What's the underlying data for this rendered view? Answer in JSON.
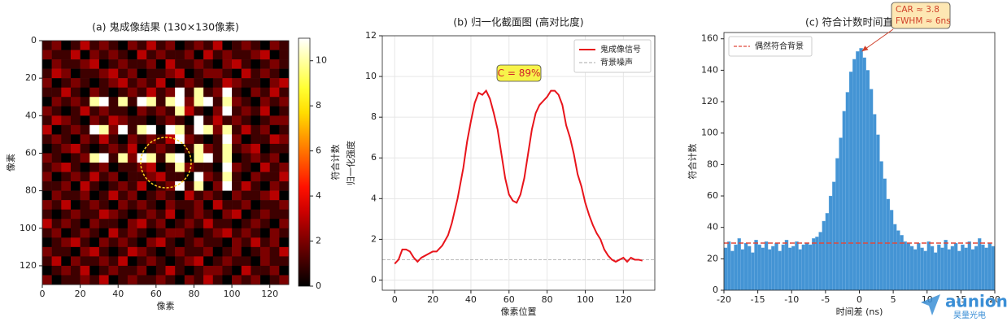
{
  "chart_data": [
    {
      "type": "heatmap",
      "title": "(a) 鬼成像结果 (130×130像素)",
      "xlabel": "像素",
      "ylabel": "像素",
      "colormap": "hot",
      "colorbar_label": "符合计数",
      "zlim": [
        0,
        11
      ],
      "zticks": [
        0,
        2,
        4,
        6,
        8,
        10
      ],
      "xlim": [
        0,
        130
      ],
      "ylim": [
        130,
        0
      ],
      "xticks": [
        0,
        20,
        40,
        60,
        80,
        100,
        120
      ],
      "yticks": [
        0,
        20,
        40,
        60,
        80,
        100,
        120
      ],
      "xbins": [
        0,
        5,
        10,
        15,
        20,
        25,
        30,
        35,
        40,
        45,
        50,
        55,
        60,
        65,
        70,
        75,
        80,
        85,
        90,
        95,
        100,
        105,
        110,
        115,
        120,
        125,
        130
      ],
      "ybins": [
        0,
        5,
        10,
        15,
        20,
        25,
        30,
        35,
        40,
        45,
        50,
        55,
        60,
        65,
        70,
        75,
        80,
        85,
        90,
        95,
        100,
        105,
        110,
        115,
        120,
        125,
        130
      ],
      "z": [
        [
          1,
          2,
          0,
          1,
          3,
          1,
          2,
          1,
          0,
          2,
          1,
          3,
          1,
          2,
          0,
          1,
          2,
          1,
          3,
          0,
          1,
          2,
          1,
          0,
          2,
          1
        ],
        [
          2,
          1,
          1,
          3,
          0,
          2,
          1,
          2,
          1,
          0,
          3,
          1,
          2,
          1,
          1,
          2,
          0,
          3,
          1,
          2,
          1,
          1,
          2,
          3,
          0,
          1
        ],
        [
          0,
          2,
          1,
          1,
          2,
          3,
          0,
          1,
          2,
          1,
          1,
          2,
          0,
          3,
          1,
          1,
          2,
          1,
          0,
          2,
          3,
          1,
          0,
          1,
          2,
          1
        ],
        [
          1,
          3,
          2,
          0,
          1,
          1,
          2,
          3,
          1,
          2,
          0,
          1,
          1,
          2,
          3,
          0,
          1,
          2,
          2,
          1,
          0,
          3,
          1,
          2,
          1,
          0
        ],
        [
          2,
          0,
          1,
          2,
          1,
          0,
          1,
          2,
          3,
          1,
          2,
          1,
          3,
          0,
          1,
          2,
          1,
          0,
          1,
          3,
          2,
          1,
          1,
          0,
          2,
          3
        ],
        [
          1,
          1,
          3,
          1,
          0,
          2,
          1,
          0,
          1,
          2,
          1,
          3,
          1,
          2,
          11,
          1,
          10,
          1,
          2,
          11,
          1,
          0,
          2,
          1,
          3,
          1
        ],
        [
          0,
          2,
          1,
          2,
          1,
          10,
          11,
          1,
          10,
          1,
          11,
          10,
          1,
          10,
          11,
          2,
          10,
          11,
          1,
          10,
          2,
          1,
          0,
          2,
          1,
          2
        ],
        [
          2,
          1,
          0,
          1,
          3,
          1,
          2,
          1,
          1,
          0,
          2,
          1,
          2,
          1,
          10,
          3,
          1,
          0,
          2,
          11,
          1,
          2,
          1,
          3,
          0,
          1
        ],
        [
          1,
          3,
          2,
          1,
          0,
          2,
          1,
          3,
          2,
          1,
          1,
          0,
          1,
          2,
          1,
          0,
          11,
          1,
          3,
          1,
          2,
          1,
          0,
          1,
          2,
          2
        ],
        [
          3,
          0,
          1,
          2,
          1,
          11,
          10,
          2,
          11,
          1,
          10,
          11,
          0,
          11,
          10,
          1,
          11,
          10,
          2,
          10,
          1,
          3,
          1,
          2,
          0,
          1
        ],
        [
          1,
          2,
          1,
          0,
          2,
          1,
          3,
          1,
          0,
          2,
          1,
          2,
          1,
          3,
          11,
          2,
          1,
          0,
          1,
          11,
          2,
          0,
          1,
          1,
          3,
          2
        ],
        [
          0,
          1,
          2,
          3,
          1,
          0,
          1,
          2,
          1,
          3,
          0,
          1,
          2,
          1,
          0,
          1,
          10,
          2,
          1,
          10,
          1,
          2,
          3,
          0,
          1,
          1
        ],
        [
          2,
          1,
          0,
          1,
          2,
          10,
          11,
          1,
          10,
          2,
          11,
          10,
          1,
          10,
          11,
          0,
          10,
          11,
          1,
          10,
          0,
          1,
          2,
          1,
          2,
          0
        ],
        [
          1,
          2,
          3,
          1,
          0,
          1,
          2,
          0,
          1,
          1,
          2,
          3,
          0,
          1,
          10,
          2,
          1,
          1,
          0,
          11,
          2,
          1,
          0,
          3,
          1,
          2
        ],
        [
          2,
          0,
          1,
          2,
          1,
          3,
          1,
          2,
          0,
          1,
          1,
          2,
          3,
          1,
          1,
          0,
          11,
          2,
          1,
          10,
          1,
          0,
          2,
          1,
          1,
          3
        ],
        [
          1,
          1,
          2,
          0,
          3,
          1,
          0,
          1,
          2,
          1,
          3,
          0,
          1,
          2,
          11,
          1,
          10,
          0,
          2,
          11,
          1,
          3,
          1,
          0,
          2,
          1
        ],
        [
          0,
          2,
          1,
          1,
          2,
          0,
          1,
          3,
          1,
          2,
          0,
          1,
          2,
          1,
          0,
          3,
          1,
          2,
          1,
          0,
          2,
          1,
          1,
          2,
          3,
          0
        ],
        [
          2,
          1,
          3,
          0,
          1,
          2,
          1,
          0,
          2,
          1,
          2,
          1,
          0,
          2,
          1,
          1,
          2,
          0,
          3,
          1,
          1,
          2,
          0,
          1,
          1,
          2
        ],
        [
          1,
          0,
          1,
          2,
          1,
          1,
          3,
          2,
          1,
          0,
          1,
          2,
          1,
          3,
          0,
          1,
          2,
          1,
          0,
          2,
          3,
          0,
          1,
          2,
          1,
          1
        ],
        [
          3,
          1,
          2,
          1,
          0,
          2,
          1,
          1,
          0,
          2,
          3,
          1,
          2,
          0,
          1,
          2,
          1,
          3,
          1,
          1,
          0,
          1,
          2,
          1,
          0,
          2
        ],
        [
          1,
          2,
          0,
          1,
          2,
          1,
          0,
          3,
          1,
          2,
          1,
          0,
          1,
          2,
          2,
          1,
          0,
          1,
          2,
          3,
          1,
          2,
          1,
          0,
          2,
          1
        ],
        [
          0,
          1,
          2,
          3,
          1,
          0,
          2,
          1,
          2,
          1,
          0,
          2,
          3,
          1,
          0,
          1,
          2,
          1,
          1,
          0,
          2,
          1,
          3,
          1,
          2,
          0
        ],
        [
          2,
          1,
          1,
          0,
          2,
          3,
          1,
          0,
          1,
          3,
          2,
          1,
          0,
          1,
          2,
          1,
          1,
          2,
          0,
          1,
          2,
          0,
          1,
          2,
          1,
          3
        ],
        [
          1,
          3,
          0,
          2,
          1,
          1,
          2,
          1,
          3,
          0,
          1,
          2,
          1,
          0,
          1,
          2,
          3,
          0,
          1,
          2,
          1,
          1,
          0,
          2,
          1,
          1
        ],
        [
          0,
          1,
          2,
          1,
          3,
          0,
          1,
          2,
          1,
          1,
          2,
          0,
          1,
          3,
          1,
          0,
          1,
          2,
          2,
          1,
          0,
          3,
          1,
          1,
          2,
          0
        ],
        [
          2,
          0,
          1,
          1,
          2,
          1,
          3,
          0,
          1,
          2,
          1,
          1,
          2,
          1,
          0,
          2,
          1,
          3,
          1,
          0,
          2,
          1,
          2,
          0,
          1,
          2
        ]
      ]
    },
    {
      "type": "line",
      "title": "(b) 归一化截面图 (高对比度)",
      "xlabel": "像素位置",
      "ylabel": "归一化强度",
      "xlim": [
        -6.5,
        136.5
      ],
      "ylim": [
        -0.5,
        12
      ],
      "xticks": [
        0,
        20,
        40,
        60,
        80,
        100,
        120
      ],
      "yticks": [
        0,
        2,
        4,
        6,
        8,
        10,
        12
      ],
      "grid": true,
      "legend": "upper right",
      "annotation": "C = 89%",
      "series": [
        {
          "name": "鬼成像信号",
          "color": "#e8141b",
          "x": [
            0,
            2,
            4,
            6,
            8,
            10,
            12,
            14,
            16,
            18,
            20,
            22,
            25,
            28,
            30,
            33,
            36,
            38,
            40,
            42,
            44,
            46,
            48,
            50,
            52,
            54,
            56,
            58,
            60,
            62,
            64,
            66,
            68,
            70,
            72,
            74,
            76,
            78,
            80,
            82,
            84,
            86,
            88,
            90,
            92,
            94,
            96,
            98,
            100,
            102,
            104,
            106,
            108,
            110,
            112,
            114,
            116,
            118,
            120,
            122,
            124,
            126,
            128,
            130
          ],
          "values": [
            0.8,
            1.0,
            1.5,
            1.5,
            1.4,
            1.1,
            0.9,
            1.1,
            1.2,
            1.3,
            1.4,
            1.4,
            1.7,
            2.2,
            2.8,
            4.0,
            5.5,
            6.8,
            7.8,
            8.7,
            9.2,
            9.1,
            9.3,
            8.9,
            8.2,
            7.4,
            6.2,
            5.0,
            4.2,
            3.9,
            3.8,
            4.2,
            5.0,
            6.2,
            7.4,
            8.2,
            8.6,
            8.8,
            9.0,
            9.3,
            9.3,
            9.1,
            8.6,
            7.6,
            7.0,
            6.2,
            5.2,
            4.6,
            3.8,
            3.2,
            2.7,
            2.3,
            2.0,
            1.5,
            1.2,
            1.0,
            0.9,
            1.0,
            1.1,
            0.9,
            1.1,
            1.0,
            1.0,
            0.95
          ]
        }
      ],
      "hlines": [
        {
          "name": "背景噪声",
          "color": "#bbbbbb",
          "value": 1
        }
      ]
    },
    {
      "type": "histogram",
      "title": "(c) 符合计数时间直方图",
      "xlabel": "时间差 (ns)",
      "ylabel": "符合计数",
      "xlim": [
        -20,
        20
      ],
      "ylim": [
        0,
        164
      ],
      "xticks": [
        -20,
        -15,
        -10,
        -5,
        0,
        5,
        10,
        15,
        20
      ],
      "yticks": [
        0,
        20,
        40,
        60,
        80,
        100,
        120,
        140,
        160
      ],
      "color": "#3a8fd2",
      "legend": "upper left",
      "annotation": [
        "CAR ≈ 3.8",
        "FWHM ≈ 6ns"
      ],
      "bins": [
        -20,
        -19.5,
        -19,
        -18.5,
        -18,
        -17.5,
        -17,
        -16.5,
        -16,
        -15.5,
        -15,
        -14.5,
        -14,
        -13.5,
        -13,
        -12.5,
        -12,
        -11.5,
        -11,
        -10.5,
        -10,
        -9.5,
        -9,
        -8.5,
        -8,
        -7.5,
        -7,
        -6.5,
        -6,
        -5.5,
        -5,
        -4.5,
        -4,
        -3.5,
        -3,
        -2.5,
        -2,
        -1.5,
        -1,
        -0.5,
        0,
        0.5,
        1,
        1.5,
        2,
        2.5,
        3,
        3.5,
        4,
        4.5,
        5,
        5.5,
        6,
        6.5,
        7,
        7.5,
        8,
        8.5,
        9,
        9.5,
        10,
        10.5,
        11,
        11.5,
        12,
        12.5,
        13,
        13.5,
        14,
        14.5,
        15,
        15.5,
        16,
        16.5,
        17,
        17.5,
        18,
        18.5,
        19,
        19.5,
        20
      ],
      "values": [
        27,
        31,
        25,
        29,
        33,
        26,
        30,
        28,
        24,
        32,
        29,
        27,
        31,
        26,
        28,
        30,
        25,
        29,
        32,
        27,
        28,
        31,
        26,
        29,
        30,
        29,
        33,
        34,
        37,
        44,
        49,
        60,
        69,
        84,
        97,
        114,
        126,
        139,
        147,
        152,
        154,
        148,
        140,
        128,
        112,
        99,
        82,
        71,
        58,
        51,
        42,
        38,
        35,
        31,
        30,
        28,
        26,
        30,
        27,
        25,
        31,
        28,
        24,
        29,
        27,
        32,
        26,
        28,
        30,
        25,
        29,
        27,
        31,
        26,
        28,
        33,
        29,
        27,
        30,
        28
      ],
      "hlines": [
        {
          "name": "偶然符合背景",
          "color": "#e0483a",
          "value": 30
        }
      ]
    },
    {
      "type": "watermark",
      "texts": [
        "aunion",
        "昊量光电"
      ]
    }
  ]
}
